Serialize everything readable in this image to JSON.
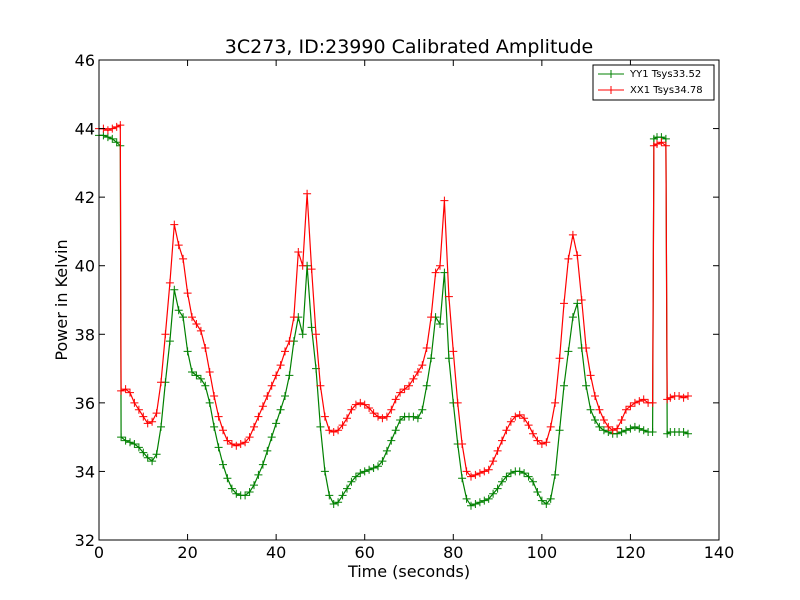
{
  "chart_data": {
    "type": "line",
    "title": "3C273, ID:23990 Calibrated Amplitude",
    "xlabel": "Time (seconds)",
    "ylabel": "Power in Kelvin",
    "xlim": [
      0,
      140
    ],
    "ylim": [
      32,
      46
    ],
    "xticks": [
      "0",
      "20",
      "40",
      "60",
      "80",
      "100",
      "120",
      "140"
    ],
    "yticks": [
      "32",
      "34",
      "36",
      "38",
      "40",
      "42",
      "44",
      "46"
    ],
    "grid": false,
    "legend_position": "top-right",
    "marker": "+",
    "series": [
      {
        "name": "YY1 Tsys33.52",
        "color": "#008000",
        "points": [
          [
            0,
            43.8
          ],
          [
            1,
            43.8
          ],
          [
            2,
            43.75
          ],
          [
            3,
            43.7
          ],
          [
            4,
            43.6
          ],
          [
            4.8,
            43.5
          ],
          [
            5,
            35.0
          ],
          [
            6,
            34.9
          ],
          [
            7,
            34.85
          ],
          [
            8,
            34.8
          ],
          [
            9,
            34.7
          ],
          [
            10,
            34.55
          ],
          [
            11,
            34.4
          ],
          [
            12,
            34.3
          ],
          [
            13,
            34.5
          ],
          [
            14,
            35.3
          ],
          [
            15,
            36.6
          ],
          [
            16,
            37.8
          ],
          [
            17,
            39.3
          ],
          [
            18,
            38.7
          ],
          [
            19,
            38.5
          ],
          [
            20,
            37.5
          ],
          [
            21,
            36.9
          ],
          [
            22,
            36.8
          ],
          [
            23,
            36.7
          ],
          [
            24,
            36.5
          ],
          [
            25,
            36.0
          ],
          [
            26,
            35.3
          ],
          [
            27,
            34.7
          ],
          [
            28,
            34.2
          ],
          [
            29,
            33.8
          ],
          [
            30,
            33.5
          ],
          [
            31,
            33.35
          ],
          [
            32,
            33.3
          ],
          [
            33,
            33.3
          ],
          [
            34,
            33.4
          ],
          [
            35,
            33.6
          ],
          [
            36,
            33.9
          ],
          [
            37,
            34.2
          ],
          [
            38,
            34.6
          ],
          [
            39,
            35.0
          ],
          [
            40,
            35.4
          ],
          [
            41,
            35.8
          ],
          [
            42,
            36.2
          ],
          [
            43,
            36.8
          ],
          [
            44,
            37.8
          ],
          [
            45,
            38.5
          ],
          [
            46,
            38.0
          ],
          [
            47,
            40.0
          ],
          [
            48,
            38.2
          ],
          [
            49,
            37.0
          ],
          [
            50,
            35.3
          ],
          [
            51,
            34.0
          ],
          [
            52,
            33.3
          ],
          [
            53,
            33.05
          ],
          [
            54,
            33.1
          ],
          [
            55,
            33.3
          ],
          [
            56,
            33.5
          ],
          [
            57,
            33.7
          ],
          [
            58,
            33.85
          ],
          [
            59,
            33.95
          ],
          [
            60,
            34.0
          ],
          [
            61,
            34.05
          ],
          [
            62,
            34.1
          ],
          [
            63,
            34.15
          ],
          [
            64,
            34.3
          ],
          [
            65,
            34.6
          ],
          [
            66,
            34.9
          ],
          [
            67,
            35.2
          ],
          [
            68,
            35.5
          ],
          [
            69,
            35.6
          ],
          [
            70,
            35.6
          ],
          [
            71,
            35.6
          ],
          [
            72,
            35.55
          ],
          [
            73,
            35.8
          ],
          [
            74,
            36.5
          ],
          [
            75,
            37.3
          ],
          [
            76,
            38.5
          ],
          [
            77,
            38.3
          ],
          [
            78,
            39.8
          ],
          [
            79,
            37.3
          ],
          [
            80,
            36.0
          ],
          [
            81,
            34.8
          ],
          [
            82,
            33.8
          ],
          [
            83,
            33.2
          ],
          [
            84,
            33.0
          ],
          [
            85,
            33.05
          ],
          [
            86,
            33.1
          ],
          [
            87,
            33.15
          ],
          [
            88,
            33.2
          ],
          [
            89,
            33.35
          ],
          [
            90,
            33.5
          ],
          [
            91,
            33.7
          ],
          [
            92,
            33.85
          ],
          [
            93,
            33.95
          ],
          [
            94,
            34.0
          ],
          [
            95,
            34.0
          ],
          [
            96,
            33.95
          ],
          [
            97,
            33.85
          ],
          [
            98,
            33.7
          ],
          [
            99,
            33.4
          ],
          [
            100,
            33.15
          ],
          [
            101,
            33.05
          ],
          [
            102,
            33.2
          ],
          [
            103,
            33.9
          ],
          [
            104,
            35.2
          ],
          [
            105,
            36.5
          ],
          [
            106,
            37.5
          ],
          [
            107,
            38.5
          ],
          [
            108,
            38.9
          ],
          [
            109,
            37.6
          ],
          [
            110,
            36.5
          ],
          [
            111,
            35.8
          ],
          [
            112,
            35.5
          ],
          [
            113,
            35.3
          ],
          [
            114,
            35.2
          ],
          [
            115,
            35.15
          ],
          [
            116,
            35.1
          ],
          [
            117,
            35.1
          ],
          [
            118,
            35.15
          ],
          [
            119,
            35.2
          ],
          [
            120,
            35.25
          ],
          [
            121,
            35.3
          ],
          [
            122,
            35.25
          ],
          [
            123,
            35.2
          ],
          [
            124,
            35.15
          ],
          [
            125,
            35.15
          ],
          [
            125.3,
            43.7
          ],
          [
            126,
            43.75
          ],
          [
            127,
            43.75
          ],
          [
            128,
            43.7
          ],
          [
            128.3,
            35.1
          ],
          [
            129,
            35.15
          ],
          [
            130,
            35.15
          ],
          [
            131,
            35.15
          ],
          [
            132,
            35.15
          ],
          [
            133,
            35.1
          ]
        ]
      },
      {
        "name": "XX1 Tsys34.78",
        "color": "#ff0000",
        "points": [
          [
            0,
            44.0
          ],
          [
            1,
            44.0
          ],
          [
            2,
            43.95
          ],
          [
            3,
            44.0
          ],
          [
            4,
            44.05
          ],
          [
            4.8,
            44.1
          ],
          [
            5,
            36.35
          ],
          [
            6,
            36.4
          ],
          [
            7,
            36.3
          ],
          [
            8,
            36.0
          ],
          [
            9,
            35.8
          ],
          [
            10,
            35.6
          ],
          [
            11,
            35.4
          ],
          [
            12,
            35.45
          ],
          [
            13,
            35.7
          ],
          [
            14,
            36.6
          ],
          [
            15,
            38.0
          ],
          [
            16,
            39.5
          ],
          [
            17,
            41.2
          ],
          [
            18,
            40.6
          ],
          [
            19,
            40.2
          ],
          [
            20,
            39.2
          ],
          [
            21,
            38.5
          ],
          [
            22,
            38.3
          ],
          [
            23,
            38.1
          ],
          [
            24,
            37.6
          ],
          [
            25,
            36.9
          ],
          [
            26,
            36.2
          ],
          [
            27,
            35.6
          ],
          [
            28,
            35.2
          ],
          [
            29,
            34.9
          ],
          [
            30,
            34.8
          ],
          [
            31,
            34.75
          ],
          [
            32,
            34.8
          ],
          [
            33,
            34.85
          ],
          [
            34,
            35.0
          ],
          [
            35,
            35.3
          ],
          [
            36,
            35.6
          ],
          [
            37,
            35.9
          ],
          [
            38,
            36.2
          ],
          [
            39,
            36.5
          ],
          [
            40,
            36.8
          ],
          [
            41,
            37.1
          ],
          [
            42,
            37.5
          ],
          [
            43,
            37.8
          ],
          [
            44,
            38.5
          ],
          [
            45,
            40.4
          ],
          [
            46,
            40.0
          ],
          [
            47,
            42.1
          ],
          [
            48,
            39.9
          ],
          [
            49,
            38.0
          ],
          [
            50,
            36.5
          ],
          [
            51,
            35.6
          ],
          [
            52,
            35.2
          ],
          [
            53,
            35.15
          ],
          [
            54,
            35.2
          ],
          [
            55,
            35.35
          ],
          [
            56,
            35.55
          ],
          [
            57,
            35.8
          ],
          [
            58,
            35.95
          ],
          [
            59,
            36.0
          ],
          [
            60,
            35.95
          ],
          [
            61,
            35.85
          ],
          [
            62,
            35.7
          ],
          [
            63,
            35.6
          ],
          [
            64,
            35.55
          ],
          [
            65,
            35.6
          ],
          [
            66,
            35.8
          ],
          [
            67,
            36.1
          ],
          [
            68,
            36.3
          ],
          [
            69,
            36.4
          ],
          [
            70,
            36.5
          ],
          [
            71,
            36.7
          ],
          [
            72,
            36.9
          ],
          [
            73,
            37.1
          ],
          [
            74,
            37.6
          ],
          [
            75,
            38.5
          ],
          [
            76,
            39.8
          ],
          [
            77,
            40.0
          ],
          [
            78,
            41.9
          ],
          [
            79,
            39.1
          ],
          [
            80,
            37.5
          ],
          [
            81,
            36.0
          ],
          [
            82,
            34.8
          ],
          [
            83,
            34.0
          ],
          [
            84,
            33.85
          ],
          [
            85,
            33.9
          ],
          [
            86,
            33.95
          ],
          [
            87,
            34.0
          ],
          [
            88,
            34.05
          ],
          [
            89,
            34.3
          ],
          [
            90,
            34.6
          ],
          [
            91,
            34.9
          ],
          [
            92,
            35.2
          ],
          [
            93,
            35.45
          ],
          [
            94,
            35.6
          ],
          [
            95,
            35.65
          ],
          [
            96,
            35.55
          ],
          [
            97,
            35.35
          ],
          [
            98,
            35.1
          ],
          [
            99,
            34.9
          ],
          [
            100,
            34.8
          ],
          [
            101,
            34.85
          ],
          [
            102,
            35.3
          ],
          [
            103,
            36.0
          ],
          [
            104,
            37.3
          ],
          [
            105,
            38.9
          ],
          [
            106,
            40.2
          ],
          [
            107,
            40.9
          ],
          [
            108,
            40.3
          ],
          [
            109,
            39.0
          ],
          [
            110,
            37.6
          ],
          [
            111,
            36.8
          ],
          [
            112,
            36.2
          ],
          [
            113,
            35.8
          ],
          [
            114,
            35.5
          ],
          [
            115,
            35.3
          ],
          [
            116,
            35.2
          ],
          [
            117,
            35.25
          ],
          [
            118,
            35.5
          ],
          [
            119,
            35.8
          ],
          [
            120,
            35.9
          ],
          [
            121,
            36.0
          ],
          [
            122,
            36.05
          ],
          [
            123,
            36.1
          ],
          [
            124,
            36.0
          ],
          [
            125,
            36.0
          ],
          [
            125.3,
            43.5
          ],
          [
            126,
            43.55
          ],
          [
            127,
            43.6
          ],
          [
            128,
            43.5
          ],
          [
            128.3,
            36.1
          ],
          [
            129,
            36.15
          ],
          [
            130,
            36.2
          ],
          [
            131,
            36.2
          ],
          [
            132,
            36.15
          ],
          [
            133,
            36.2
          ]
        ]
      }
    ]
  }
}
